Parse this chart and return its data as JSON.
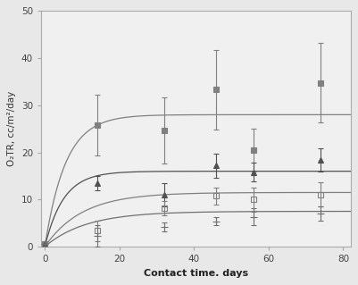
{
  "title": "",
  "xlabel": "Contact time. days",
  "ylabel": "O₂TR, cc/m²/day",
  "xlim": [
    -1,
    82
  ],
  "ylim": [
    0,
    50
  ],
  "xticks": [
    0,
    20,
    40,
    60,
    80
  ],
  "yticks": [
    0,
    10,
    20,
    30,
    40,
    50
  ],
  "background_color": "#e8e8e8",
  "plot_bg_color": "#f0f0f0",
  "series": [
    {
      "name": "series1_filled_square",
      "x": [
        0,
        14,
        32,
        46,
        56,
        74
      ],
      "y": [
        0.5,
        25.8,
        24.6,
        33.3,
        20.5,
        34.8
      ],
      "yerr": [
        0.3,
        6.5,
        7.0,
        8.5,
        4.5,
        8.5
      ],
      "marker": "s",
      "markersize": 5,
      "color": "#808080",
      "fillstyle": "full",
      "curve_asymptote": 28.0,
      "curve_rate": 0.18
    },
    {
      "name": "series2_filled_triangle",
      "x": [
        0,
        14,
        32,
        46,
        56,
        74
      ],
      "y": [
        0.5,
        13.4,
        11.0,
        17.2,
        15.8,
        18.4
      ],
      "yerr": [
        0.2,
        1.5,
        2.5,
        2.5,
        2.0,
        2.5
      ],
      "marker": "^",
      "markersize": 5,
      "color": "#505050",
      "fillstyle": "full",
      "curve_asymptote": 16.0,
      "curve_rate": 0.2
    },
    {
      "name": "series3_open_square",
      "x": [
        0,
        14,
        32,
        46,
        56,
        74
      ],
      "y": [
        0.5,
        3.4,
        8.2,
        10.8,
        10.0,
        11.1
      ],
      "yerr": [
        0.2,
        2.2,
        1.5,
        1.8,
        2.5,
        2.5
      ],
      "marker": "s",
      "markersize": 5,
      "color": "#808080",
      "fillstyle": "none",
      "curve_asymptote": 11.5,
      "curve_rate": 0.1
    },
    {
      "name": "series4_cross",
      "x": [
        0,
        14,
        32,
        46,
        56,
        74
      ],
      "y": [
        0.5,
        2.3,
        4.2,
        5.4,
        6.3,
        7.0
      ],
      "yerr": [
        0.2,
        2.2,
        1.0,
        0.8,
        1.8,
        1.5
      ],
      "marker": "+",
      "markersize": 6,
      "color": "#707070",
      "fillstyle": "full",
      "curve_asymptote": 7.5,
      "curve_rate": 0.09
    }
  ]
}
